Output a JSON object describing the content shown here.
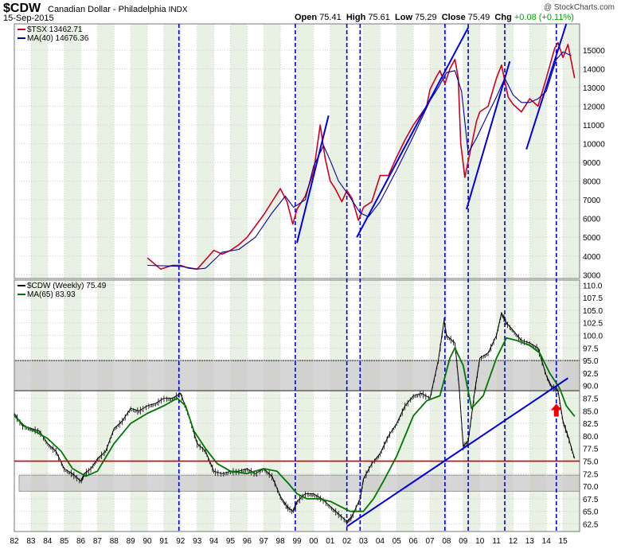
{
  "header": {
    "symbol": "$CDW",
    "name": "Canadian Dollar - Philadelphia",
    "exchange": "INDX",
    "date": "15-Sep-2015",
    "open_label": "Open",
    "open": "75.41",
    "high_label": "High",
    "high": "75.61",
    "low_label": "Low",
    "low": "75.29",
    "close_label": "Close",
    "close": "75.49",
    "chg_label": "Chg",
    "chg": "+0.08 (+0.11%)",
    "credit": "@ StockCharts.com"
  },
  "chart_data": [
    {
      "type": "line",
      "panel": "top",
      "legend": [
        "$TSX 13462.71",
        "MA(40) 14676.36"
      ],
      "legend_placement": "top-left",
      "ylim": [
        2800,
        16400
      ],
      "ytick_labels": [
        "3000",
        "4000",
        "5000",
        "6000",
        "7000",
        "8000",
        "9000",
        "10000",
        "11000",
        "12000",
        "13000",
        "14000",
        "15000"
      ],
      "series": [
        {
          "name": "$TSX 13462.71",
          "color": "#cc0022",
          "x": [
            1990.0,
            1990.8,
            1991.5,
            1992.0,
            1992.5,
            1993.0,
            1993.5,
            1994.0,
            1994.5,
            1995.0,
            1995.5,
            1996.0,
            1996.5,
            1997.0,
            1997.5,
            1998.0,
            1998.4,
            1998.75,
            1999.0,
            1999.5,
            2000.0,
            2000.4,
            2000.7,
            2001.0,
            2001.3,
            2001.7,
            2002.0,
            2002.3,
            2002.7,
            2003.0,
            2003.5,
            2004.0,
            2004.5,
            2005.0,
            2005.5,
            2006.0,
            2006.4,
            2006.8,
            2007.0,
            2007.4,
            2007.6,
            2007.9,
            2008.2,
            2008.5,
            2008.7,
            2008.85,
            2009.1,
            2009.4,
            2009.8,
            2010.0,
            2010.5,
            2011.0,
            2011.3,
            2011.7,
            2012.0,
            2012.5,
            2013.0,
            2013.5,
            2014.0,
            2014.5,
            2014.7,
            2015.0,
            2015.3,
            2015.7
          ],
          "y": [
            3900,
            3300,
            3500,
            3500,
            3350,
            3300,
            3800,
            4300,
            4100,
            4300,
            4600,
            5000,
            5600,
            6200,
            6900,
            7600,
            6900,
            5700,
            6500,
            7200,
            8500,
            11000,
            9200,
            8000,
            7600,
            6900,
            7500,
            7100,
            5900,
            6600,
            6900,
            8300,
            8300,
            9300,
            10200,
            11000,
            11500,
            12000,
            12900,
            13600,
            13900,
            13200,
            14000,
            14500,
            13500,
            10000,
            8200,
            9500,
            11200,
            11700,
            12000,
            13500,
            14200,
            12500,
            12100,
            11700,
            12400,
            12000,
            13500,
            15100,
            15400,
            14600,
            15300,
            13500
          ]
        },
        {
          "name": "MA(40) 14676.36",
          "color": "#000099",
          "x": [
            1990.0,
            1992.0,
            1993.0,
            1993.5,
            1994.5,
            1995.5,
            1996.5,
            1997.5,
            1998.3,
            1998.8,
            1999.5,
            2000.0,
            2000.6,
            2001.0,
            2001.5,
            2002.0,
            2002.8,
            2003.3,
            2004.0,
            2005.0,
            2006.0,
            2007.0,
            2007.5,
            2008.0,
            2008.5,
            2008.9,
            2009.3,
            2009.8,
            2010.5,
            2011.0,
            2011.5,
            2012.0,
            2012.5,
            2013.0,
            2013.5,
            2014.0,
            2014.6,
            2015.0,
            2015.5
          ],
          "y": [
            3500,
            3450,
            3300,
            3350,
            4200,
            4350,
            5000,
            6300,
            7200,
            6600,
            7000,
            8800,
            9900,
            9100,
            8000,
            7400,
            6300,
            6100,
            6900,
            8600,
            10400,
            12300,
            13000,
            13800,
            13900,
            12800,
            9500,
            10300,
            11600,
            12500,
            13500,
            12600,
            12200,
            12200,
            12400,
            12800,
            14500,
            14900,
            14700
          ]
        }
      ]
    },
    {
      "type": "line",
      "panel": "bottom",
      "legend": [
        "$CDW (Weekly) 75.49",
        "MA(65) 83.93"
      ],
      "legend_placement": "top-left",
      "ylim": [
        61.0,
        111.0
      ],
      "ytick_labels": [
        "62.5",
        "65.0",
        "67.5",
        "70.0",
        "72.5",
        "75.0",
        "77.5",
        "80.0",
        "82.5",
        "85.0",
        "87.5",
        "90.0",
        "92.5",
        "95.0",
        "97.5",
        "100.0",
        "102.5",
        "105.0",
        "107.5",
        "110.0"
      ],
      "xtick_labels": [
        "82",
        "83",
        "84",
        "85",
        "86",
        "87",
        "88",
        "89",
        "90",
        "91",
        "92",
        "93",
        "94",
        "95",
        "96",
        "97",
        "98",
        "99",
        "00",
        "01",
        "02",
        "03",
        "04",
        "05",
        "06",
        "07",
        "08",
        "09",
        "10",
        "11",
        "12",
        "13",
        "14",
        "15"
      ],
      "series": [
        {
          "name": "$CDW (Weekly) 75.49",
          "color": "#000000",
          "x": [
            1982.0,
            1982.5,
            1983.0,
            1983.5,
            1984.0,
            1984.5,
            1985.0,
            1985.5,
            1986.0,
            1986.2,
            1986.6,
            1987.0,
            1987.5,
            1988.0,
            1988.5,
            1989.0,
            1989.5,
            1990.0,
            1990.5,
            1991.0,
            1991.5,
            1992.0,
            1992.5,
            1993.0,
            1993.5,
            1994.0,
            1994.5,
            1995.0,
            1995.5,
            1996.0,
            1996.5,
            1997.0,
            1997.5,
            1998.0,
            1998.4,
            1998.75,
            1999.0,
            1999.5,
            2000.0,
            2000.5,
            2001.0,
            2001.5,
            2002.0,
            2002.3,
            2002.8,
            2003.0,
            2003.5,
            2004.0,
            2004.5,
            2005.0,
            2005.5,
            2006.0,
            2006.5,
            2007.0,
            2007.5,
            2007.85,
            2008.0,
            2008.5,
            2008.75,
            2009.0,
            2009.3,
            2009.7,
            2010.0,
            2010.5,
            2011.0,
            2011.3,
            2011.6,
            2012.0,
            2012.5,
            2013.0,
            2013.5,
            2014.0,
            2014.3,
            2014.7,
            2015.0,
            2015.3,
            2015.7
          ],
          "y": [
            84.5,
            82.0,
            81.5,
            81.0,
            78.5,
            77.0,
            73.5,
            72.5,
            71.0,
            72.5,
            73.5,
            75.5,
            77.0,
            81.5,
            83.0,
            85.5,
            85.0,
            86.0,
            86.5,
            87.5,
            87.5,
            88.5,
            84.0,
            78.5,
            77.0,
            73.0,
            72.5,
            73.0,
            73.0,
            73.5,
            72.5,
            73.5,
            72.0,
            68.0,
            66.0,
            65.0,
            67.0,
            68.5,
            68.5,
            67.5,
            66.0,
            64.5,
            63.0,
            64.0,
            67.5,
            71.5,
            74.5,
            76.5,
            80.0,
            82.5,
            86.0,
            88.0,
            88.5,
            87.5,
            95.0,
            103.0,
            100.0,
            98.5,
            90.0,
            78.0,
            79.0,
            89.0,
            95.5,
            96.5,
            100.0,
            104.5,
            102.5,
            101.0,
            99.0,
            98.5,
            97.5,
            92.0,
            90.0,
            89.0,
            83.0,
            80.0,
            75.5
          ]
        },
        {
          "name": "MA(65) 83.93",
          "color": "#007700",
          "x": [
            1982.0,
            1982.6,
            1983.2,
            1984.0,
            1984.8,
            1985.5,
            1986.3,
            1987.0,
            1988.0,
            1989.0,
            1990.0,
            1991.0,
            1991.8,
            1992.3,
            1992.8,
            1993.5,
            1994.2,
            1995.0,
            1996.0,
            1997.0,
            1997.8,
            1998.5,
            1999.0,
            1999.6,
            2000.3,
            2001.0,
            2001.6,
            2002.2,
            2003.0,
            2003.6,
            2004.2,
            2005.0,
            2006.0,
            2006.8,
            2007.6,
            2008.2,
            2008.5,
            2009.0,
            2009.5,
            2010.2,
            2011.0,
            2011.6,
            2012.2,
            2013.0,
            2013.6,
            2014.2,
            2014.8,
            2015.2,
            2015.7
          ],
          "y": [
            84.0,
            82.0,
            81.0,
            79.5,
            77.0,
            73.5,
            72.0,
            73.0,
            78.5,
            82.5,
            84.5,
            86.0,
            87.5,
            86.0,
            81.0,
            77.5,
            74.5,
            73.0,
            72.5,
            73.5,
            73.0,
            70.5,
            68.5,
            67.5,
            67.5,
            67.0,
            66.0,
            65.0,
            65.0,
            67.5,
            71.0,
            76.0,
            84.0,
            87.0,
            88.0,
            95.5,
            97.5,
            94.0,
            85.5,
            88.0,
            95.5,
            99.5,
            99.0,
            98.0,
            96.5,
            92.5,
            89.5,
            86.0,
            83.9
          ]
        }
      ]
    }
  ]
}
